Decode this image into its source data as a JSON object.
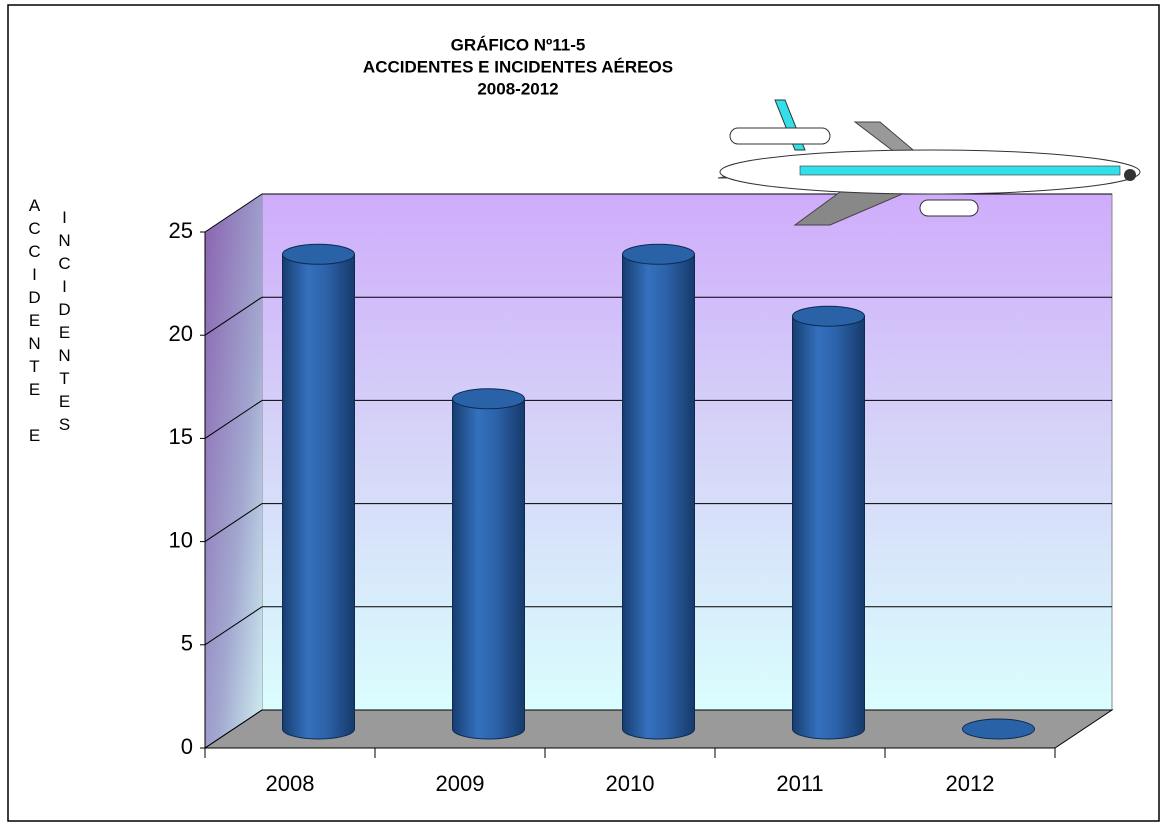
{
  "chart_data": {
    "type": "bar3d",
    "title": [
      "GRÁFICO Nº11-5",
      "ACCIDENTES E INCIDENTES AÉREOS",
      "2008-2012"
    ],
    "y_label": [
      "ACCIDENTE E",
      "INCIDENTES"
    ],
    "categories": [
      "2008",
      "2009",
      "2010",
      "2011",
      "2012"
    ],
    "values": [
      23,
      16,
      23,
      20,
      0
    ],
    "color": "#2a62a8",
    "ylim": [
      0,
      25
    ],
    "yticks": [
      0,
      5,
      10,
      15,
      20,
      25
    ],
    "grid": true
  }
}
